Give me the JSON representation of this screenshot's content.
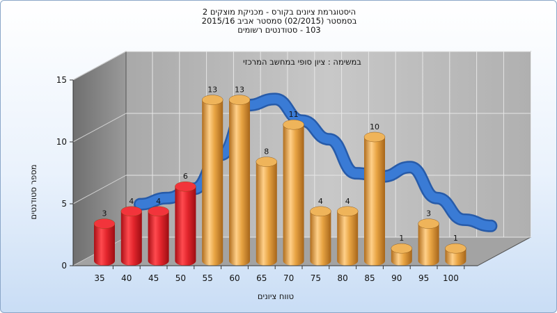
{
  "title": {
    "line1": "היסטוגרמת ציונים בקורס - מכניקת מוצקים 2",
    "line2": "בסמסטר  (02/2015)  סמסטר אביב 2015/16",
    "line3": "103 - סטודנטים רשומים"
  },
  "chart_data": {
    "type": "bar",
    "annotation": "במשימה : ציון סופי במחשב המרכזי",
    "categories": [
      "35",
      "40",
      "45",
      "50",
      "55",
      "60",
      "65",
      "70",
      "75",
      "80",
      "85",
      "90",
      "95",
      "100"
    ],
    "values": [
      3,
      4,
      4,
      6,
      13,
      13,
      8,
      11,
      4,
      4,
      10,
      1,
      3,
      1
    ],
    "bar_colors": [
      "red",
      "red",
      "red",
      "red",
      "gold",
      "gold",
      "gold",
      "gold",
      "gold",
      "gold",
      "gold",
      "gold",
      "gold",
      "gold"
    ],
    "ylim": [
      0,
      15
    ],
    "yticks": [
      0,
      5,
      10,
      15
    ],
    "xlabel": "טווח ציונים",
    "ylabel": "מספר סטודנטים",
    "curve": "smoothed distribution ribbon (blue)",
    "colors": {
      "red": "#e0232c",
      "gold": "#e7a13f",
      "curve": "#2f6ec8",
      "wall": "#b8b8b8",
      "side_wall": "#8f8f8f",
      "floor": "#9e9e9e"
    }
  }
}
